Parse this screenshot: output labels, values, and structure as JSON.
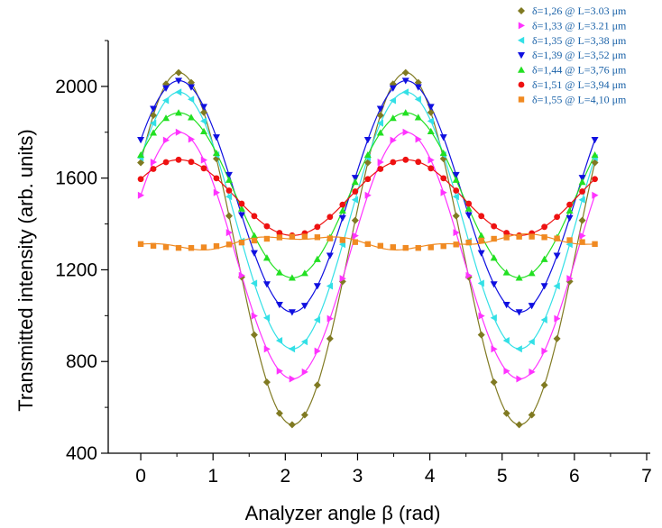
{
  "chart_data": {
    "type": "scatter",
    "title": "",
    "xlabel": "Analyzer angle β (rad)",
    "ylabel": "Transmitted intensity (arb. units)",
    "xlim": [
      -0.45,
      7.05
    ],
    "ylim": [
      400,
      2200
    ],
    "x_ticks": [
      "0",
      "1",
      "2",
      "3",
      "4",
      "5",
      "6",
      "7"
    ],
    "y_ticks": [
      "400",
      "800",
      "1200",
      "1600",
      "2000"
    ],
    "grid": false,
    "legend_position": "top-right",
    "series": [
      {
        "name": "δ=1,26 @ L=3.03 μm",
        "color": "#807a22",
        "marker": "diamond",
        "mean": 1292,
        "amp": 768,
        "phase": 0.53
      },
      {
        "name": "δ=1,33 @ L=3.21 μm",
        "color": "#ff33ff",
        "marker": "triangle-right",
        "mean": 1262,
        "amp": 538,
        "phase": 0.53
      },
      {
        "name": "δ=1,35 @ L=3,38 μm",
        "color": "#33e0e6",
        "marker": "triangle-left",
        "mean": 1415,
        "amp": 560,
        "phase": 0.53
      },
      {
        "name": "δ=1,39 @ L=3,52 μm",
        "color": "#1010e0",
        "marker": "triangle-down",
        "mean": 1520,
        "amp": 505,
        "phase": 0.53
      },
      {
        "name": "δ=1,44 @ L=3,76 μm",
        "color": "#22e022",
        "marker": "triangle-up",
        "mean": 1525,
        "amp": 360,
        "phase": 0.53
      },
      {
        "name": "δ=1,51 @ L=3,94 μm",
        "color": "#ee1111",
        "marker": "circle",
        "mean": 1515,
        "amp": 165,
        "phase": 0.53
      },
      {
        "name": "δ=1,55 @ L=4,10 μm",
        "color": "#f08a22",
        "marker": "square",
        "mean": 1320,
        "amp": 25,
        "phase": 2.2
      }
    ]
  }
}
